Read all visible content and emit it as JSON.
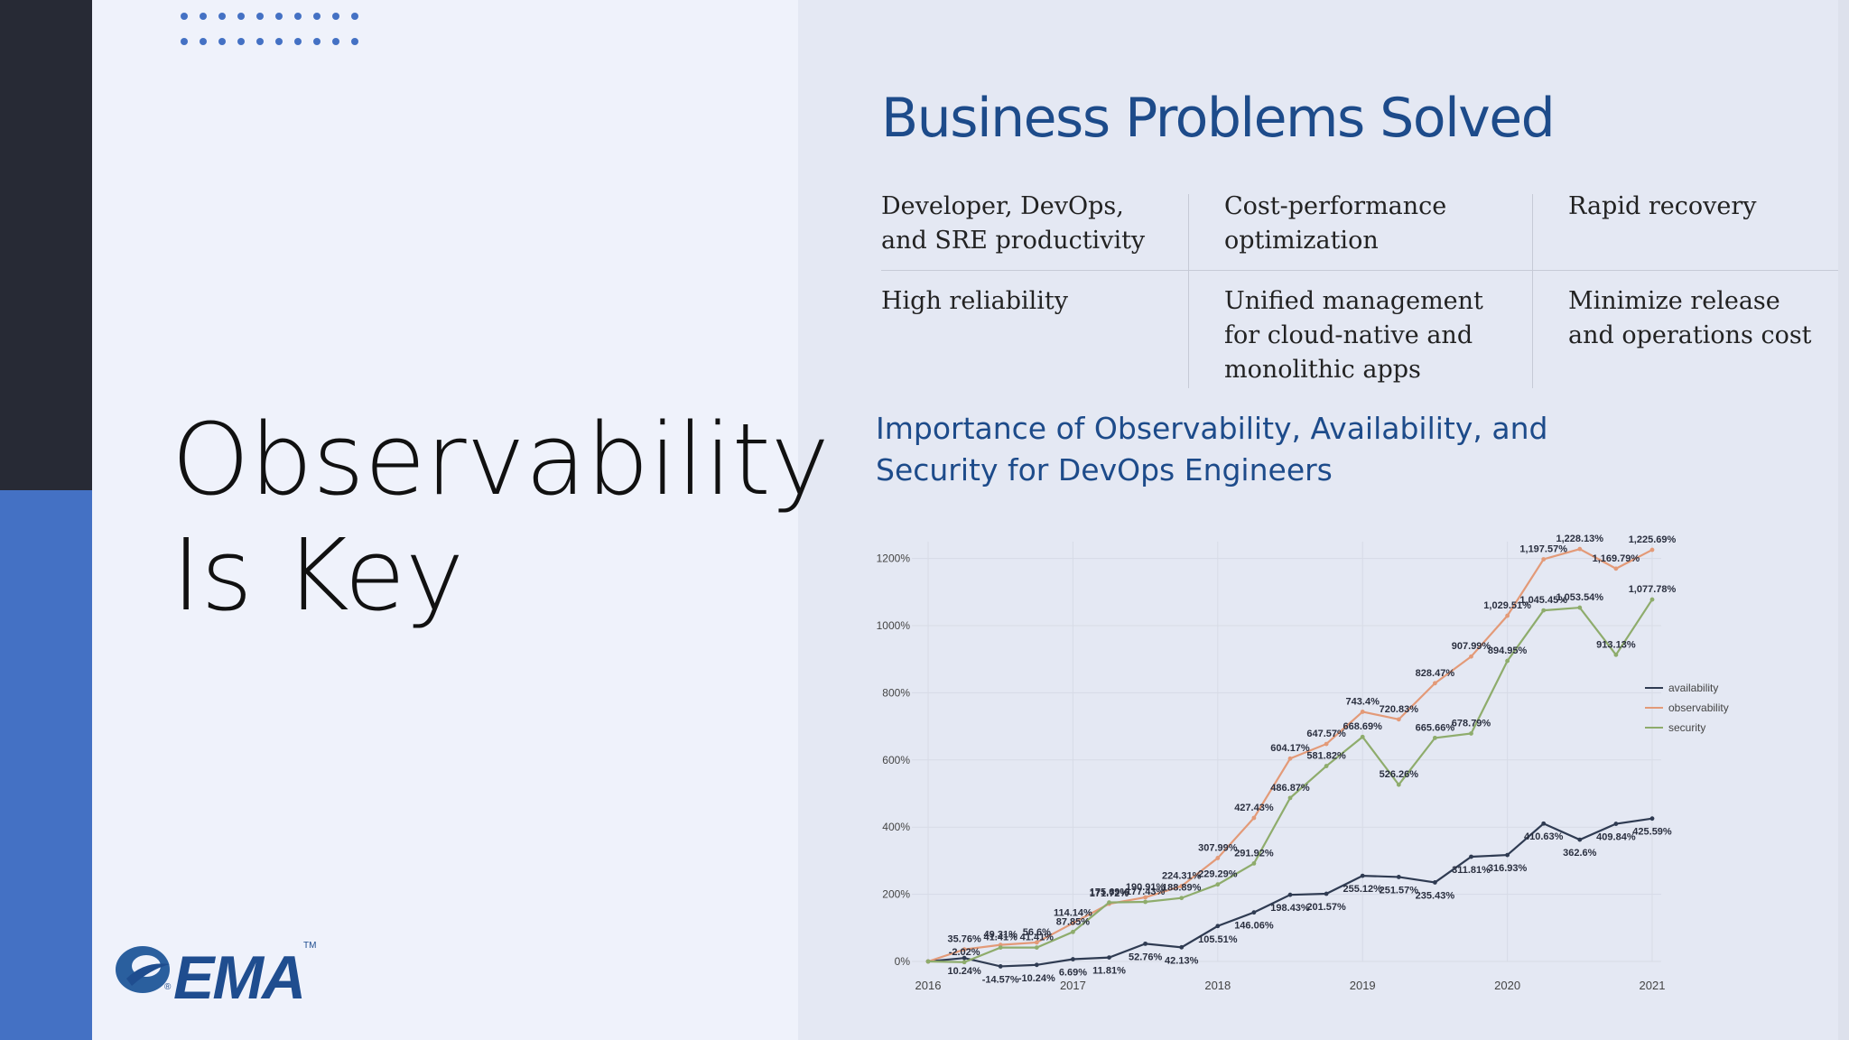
{
  "slide": {
    "title_line1": "Observability",
    "title_line2": "Is Key",
    "heading": "Business Problems Solved",
    "problems": [
      {
        "line1": "Developer, DevOps,",
        "line2": "and SRE productivity",
        "line3": ""
      },
      {
        "line1": "Cost-performance",
        "line2": "optimization",
        "line3": ""
      },
      {
        "line1": "Rapid recovery",
        "line2": "",
        "line3": ""
      },
      {
        "line1": "High reliability",
        "line2": "",
        "line3": ""
      },
      {
        "line1": "Unified management",
        "line2": "for cloud-native and",
        "line3": "monolithic apps"
      },
      {
        "line1": "Minimize release",
        "line2": "and operations cost",
        "line3": ""
      }
    ],
    "chart_heading_line1": "Importance of Observability, Availability, and",
    "chart_heading_line2": "Security for DevOps Engineers"
  },
  "logo": {
    "text": "EMA",
    "tm": "TM",
    "reg": "®"
  },
  "colors": {
    "dark_bar": "#272a35",
    "accent_blue": "#4471c4",
    "heading_blue": "#1d4b8a",
    "availability": "#2f3b52",
    "observability": "#e39a78",
    "security": "#8eac6c"
  },
  "chart_data": {
    "type": "line",
    "x_ticks": [
      "2016",
      "2017",
      "2018",
      "2019",
      "2020",
      "2021"
    ],
    "y_ticks": [
      "0%",
      "200%",
      "400%",
      "600%",
      "800%",
      "1000%",
      "1200%"
    ],
    "ylim": [
      0,
      1250
    ],
    "grid": true,
    "legend_position": "right",
    "series": [
      {
        "name": "availability",
        "color": "#2f3b52",
        "x": [
          2016.0,
          2016.25,
          2016.5,
          2016.75,
          2017.0,
          2017.25,
          2017.5,
          2017.75,
          2018.0,
          2018.25,
          2018.5,
          2018.75,
          2019.0,
          2019.25,
          2019.5,
          2019.75,
          2020.0,
          2020.25,
          2020.5,
          2020.75,
          2021.0
        ],
        "values": [
          0,
          10.24,
          -14.57,
          -10.24,
          6.69,
          11.81,
          52.76,
          42.13,
          105.51,
          146.06,
          198.43,
          201.57,
          255.12,
          251.57,
          235.43,
          311.81,
          316.93,
          410.63,
          362.6,
          409.84,
          425.59
        ],
        "labels": [
          "",
          "10.24%",
          "-14.57%",
          "-10.24%",
          "6.69%",
          "11.81%",
          "52.76%",
          "42.13%",
          "105.51%",
          "146.06%",
          "198.43%",
          "201.57%",
          "255.12%",
          "251.57%",
          "235.43%",
          "311.81%",
          "316.93%",
          "410.63%",
          "362.6%",
          "409.84%",
          "425.59%"
        ]
      },
      {
        "name": "observability",
        "color": "#e39a78",
        "x": [
          2016.0,
          2016.25,
          2016.5,
          2016.75,
          2017.0,
          2017.25,
          2017.5,
          2017.75,
          2018.0,
          2018.25,
          2018.5,
          2018.75,
          2019.0,
          2019.25,
          2019.5,
          2019.75,
          2020.0,
          2020.25,
          2020.5,
          2020.75,
          2021.0
        ],
        "values": [
          0,
          35.76,
          49.31,
          56.6,
          114.14,
          171.72,
          190.91,
          224.31,
          307.99,
          427.43,
          604.17,
          647.57,
          743.4,
          720.83,
          828.47,
          907.99,
          1029.51,
          1197.57,
          1228.13,
          1169.79,
          1225.69
        ],
        "labels": [
          "",
          "35.76%",
          "49.31%",
          "56.6%",
          "114.14%",
          "171.72%",
          "190.91%",
          "224.31%",
          "307.99%",
          "427.43%",
          "604.17%",
          "647.57%",
          "743.4%",
          "720.83%",
          "828.47%",
          "907.99%",
          "1,029.51%",
          "1,197.57%",
          "1,228.13%",
          "1,169.79%",
          "1,225.69%"
        ]
      },
      {
        "name": "security",
        "color": "#8eac6c",
        "x": [
          2016.0,
          2016.25,
          2016.5,
          2016.75,
          2017.0,
          2017.25,
          2017.5,
          2017.75,
          2018.0,
          2018.25,
          2018.5,
          2018.75,
          2019.0,
          2019.25,
          2019.5,
          2019.75,
          2020.0,
          2020.25,
          2020.5,
          2020.75,
          2021.0
        ],
        "values": [
          0,
          -2.02,
          41.41,
          41.41,
          87.85,
          175.69,
          177.43,
          188.89,
          229.29,
          291.92,
          486.87,
          581.82,
          668.69,
          526.26,
          665.66,
          678.79,
          894.95,
          1045.45,
          1053.54,
          913.13,
          1077.78
        ],
        "labels": [
          "",
          "-2.02%",
          "41.41%",
          "41.41%",
          "87.85%",
          "175.69%",
          "177.43%",
          "188.89%",
          "229.29%",
          "291.92%",
          "486.87%",
          "581.82%",
          "668.69%",
          "526.26%",
          "665.66%",
          "678.79%",
          "894.95%",
          "1,045.45%",
          "1,053.54%",
          "913.13%",
          "1,077.78%"
        ]
      }
    ]
  }
}
